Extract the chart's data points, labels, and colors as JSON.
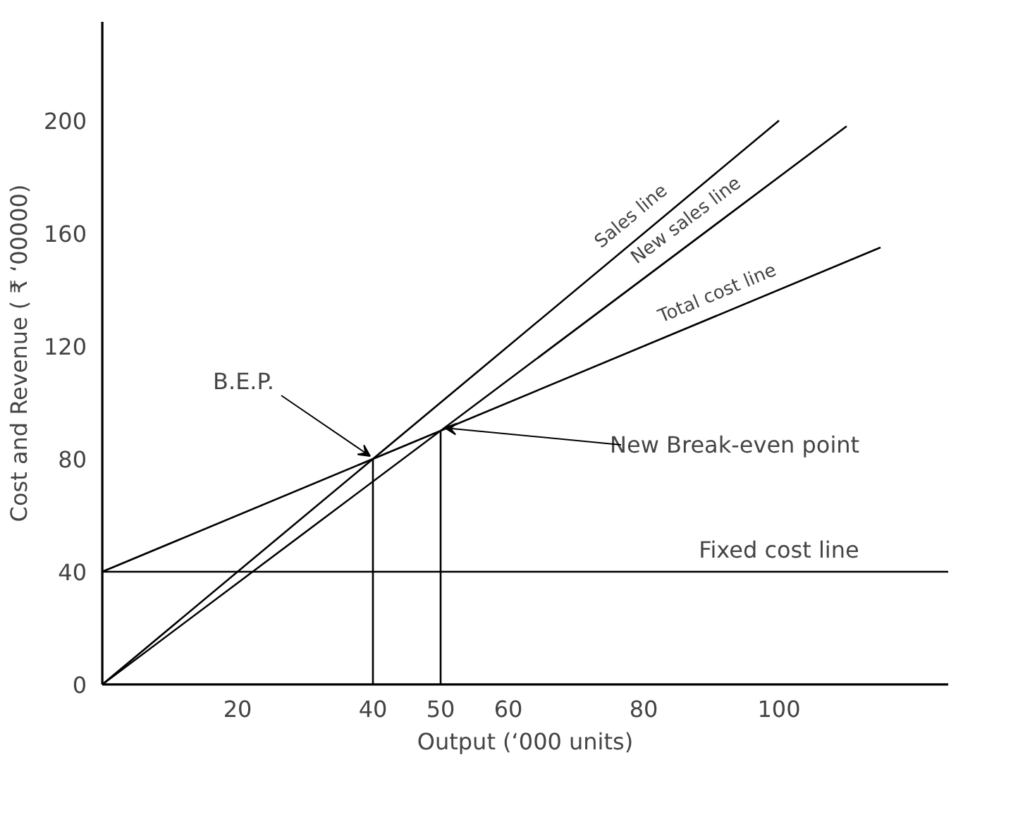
{
  "chart_data": {
    "type": "line",
    "xlabel": "Output (‘000 units)",
    "ylabel": "Cost and Revenue ( ₹ ‘00000)",
    "xlim": [
      0,
      125
    ],
    "ylim": [
      0,
      235
    ],
    "xticks": [
      20,
      40,
      50,
      60,
      80,
      100
    ],
    "yticks": [
      0,
      40,
      80,
      120,
      160,
      200
    ],
    "grid": false,
    "series": [
      {
        "name": "Sales line",
        "color": "#000000",
        "x": [
          0,
          100
        ],
        "values": [
          0,
          200
        ]
      },
      {
        "name": "New sales line",
        "color": "#000000",
        "x": [
          0,
          110
        ],
        "values": [
          0,
          198
        ]
      },
      {
        "name": "Total cost line",
        "color": "#000000",
        "x": [
          0,
          115
        ],
        "values": [
          40,
          155
        ]
      },
      {
        "name": "Fixed cost line",
        "color": "#000000",
        "x": [
          0,
          125
        ],
        "values": [
          40,
          40
        ]
      },
      {
        "color": "#000000",
        "x": [
          40,
          40
        ],
        "values": [
          0,
          80
        ]
      },
      {
        "color": "#000000",
        "x": [
          50,
          50
        ],
        "values": [
          0,
          90
        ]
      }
    ],
    "annotations": [
      {
        "text": "B.E.P.",
        "x": 40,
        "y": 80
      },
      {
        "text": "New Break-even point",
        "x": 50,
        "y": 90
      }
    ]
  }
}
